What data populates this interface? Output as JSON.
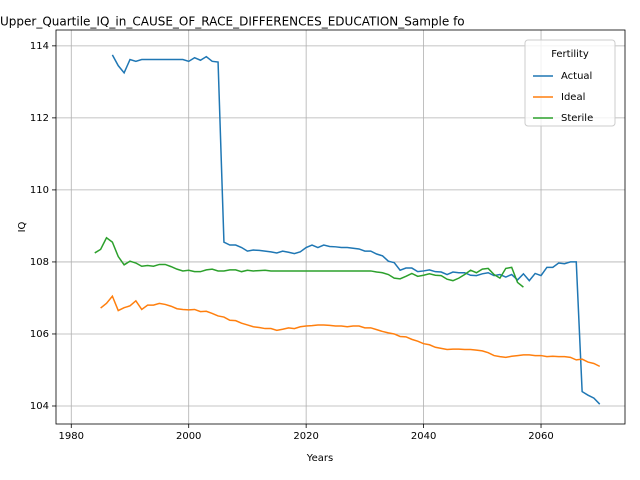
{
  "chart_data": {
    "type": "line",
    "title": "Upper_Quartile_IQ_in_CAUSE_OF_RACE_DIFFERENCES_EDUCATION_Sample fo",
    "xlabel": "Years",
    "ylabel": "IQ",
    "legend_title": "Fertility",
    "legend": "upper right",
    "grid": true,
    "xlim": [
      1977.4,
      2074.3
    ],
    "xticks": [
      1980,
      2000,
      2020,
      2040,
      2060
    ],
    "ylim": [
      103.5,
      114.44
    ],
    "yticks": [
      104,
      106,
      108,
      110,
      112,
      114
    ],
    "x": [
      1984,
      1985,
      1986,
      1987,
      1988,
      1989,
      1990,
      1991,
      1992,
      1993,
      1994,
      1995,
      1996,
      1997,
      1998,
      1999,
      2000,
      2001,
      2002,
      2003,
      2004,
      2005,
      2006,
      2007,
      2008,
      2009,
      2010,
      2011,
      2012,
      2013,
      2014,
      2015,
      2016,
      2017,
      2018,
      2019,
      2020,
      2021,
      2022,
      2023,
      2024,
      2025,
      2026,
      2027,
      2028,
      2029,
      2030,
      2031,
      2032,
      2033,
      2034,
      2035,
      2036,
      2037,
      2038,
      2039,
      2040,
      2041,
      2042,
      2043,
      2044,
      2045,
      2046,
      2047,
      2048,
      2049,
      2050,
      2051,
      2052,
      2053,
      2054,
      2055,
      2056,
      2057,
      2058,
      2059,
      2060,
      2061,
      2062,
      2063,
      2064,
      2065,
      2066,
      2067,
      2068,
      2069,
      2070
    ],
    "series": [
      {
        "name": "Actual",
        "color": "#1f77b4",
        "values": [
          null,
          null,
          null,
          113.75,
          113.45,
          113.25,
          113.62,
          113.57,
          113.62,
          113.62,
          113.62,
          113.62,
          113.62,
          113.62,
          113.62,
          113.62,
          113.57,
          113.67,
          113.6,
          113.7,
          113.57,
          113.55,
          108.55,
          108.47,
          108.47,
          108.4,
          108.3,
          108.33,
          108.32,
          108.3,
          108.28,
          108.25,
          108.3,
          108.27,
          108.23,
          108.28,
          108.4,
          108.47,
          108.4,
          108.47,
          108.43,
          108.42,
          108.4,
          108.4,
          108.38,
          108.36,
          108.3,
          108.3,
          108.22,
          108.17,
          108.02,
          107.98,
          107.77,
          107.83,
          107.83,
          107.73,
          107.75,
          107.78,
          107.73,
          107.72,
          107.65,
          107.72,
          107.7,
          107.7,
          107.63,
          107.62,
          107.67,
          107.7,
          107.62,
          107.65,
          107.58,
          107.65,
          107.5,
          107.67,
          107.48,
          107.68,
          107.62,
          107.85,
          107.85,
          107.97,
          107.95,
          108.0,
          108.0,
          104.4,
          104.3,
          104.22,
          104.05
        ]
      },
      {
        "name": "Ideal",
        "color": "#ff7f0e",
        "values": [
          null,
          106.72,
          106.85,
          107.05,
          106.65,
          106.73,
          106.78,
          106.92,
          106.68,
          106.8,
          106.8,
          106.85,
          106.82,
          106.77,
          106.7,
          106.68,
          106.67,
          106.68,
          106.62,
          106.63,
          106.57,
          106.5,
          106.47,
          106.38,
          106.37,
          106.3,
          106.25,
          106.2,
          106.18,
          106.15,
          106.15,
          106.1,
          106.13,
          106.17,
          106.15,
          106.2,
          106.22,
          106.23,
          106.25,
          106.25,
          106.24,
          106.22,
          106.22,
          106.2,
          106.22,
          106.22,
          106.17,
          106.17,
          106.12,
          106.07,
          106.03,
          106.0,
          105.93,
          105.92,
          105.85,
          105.8,
          105.73,
          105.7,
          105.63,
          105.6,
          105.57,
          105.58,
          105.58,
          105.57,
          105.57,
          105.55,
          105.53,
          105.48,
          105.4,
          105.37,
          105.35,
          105.38,
          105.4,
          105.42,
          105.42,
          105.4,
          105.4,
          105.37,
          105.38,
          105.37,
          105.37,
          105.35,
          105.28,
          105.3,
          105.22,
          105.18,
          105.1
        ]
      },
      {
        "name": "Sterile",
        "color": "#2ca02c",
        "values": [
          108.25,
          108.35,
          108.67,
          108.55,
          108.15,
          107.92,
          108.02,
          107.97,
          107.88,
          107.9,
          107.88,
          107.93,
          107.93,
          107.87,
          107.8,
          107.75,
          107.77,
          107.73,
          107.73,
          107.78,
          107.8,
          107.75,
          107.75,
          107.78,
          107.78,
          107.73,
          107.77,
          107.75,
          107.76,
          107.77,
          107.75,
          107.75,
          107.75,
          107.75,
          107.75,
          107.75,
          107.75,
          107.75,
          107.75,
          107.75,
          107.75,
          107.75,
          107.75,
          107.75,
          107.75,
          107.75,
          107.75,
          107.75,
          107.72,
          107.7,
          107.65,
          107.55,
          107.53,
          107.6,
          107.68,
          107.6,
          107.63,
          107.67,
          107.63,
          107.62,
          107.52,
          107.48,
          107.55,
          107.65,
          107.77,
          107.7,
          107.8,
          107.82,
          107.65,
          107.55,
          107.82,
          107.85,
          107.43,
          107.3,
          null,
          null,
          null,
          null,
          null,
          null,
          null,
          null,
          null,
          null,
          null,
          null,
          null
        ]
      }
    ]
  }
}
